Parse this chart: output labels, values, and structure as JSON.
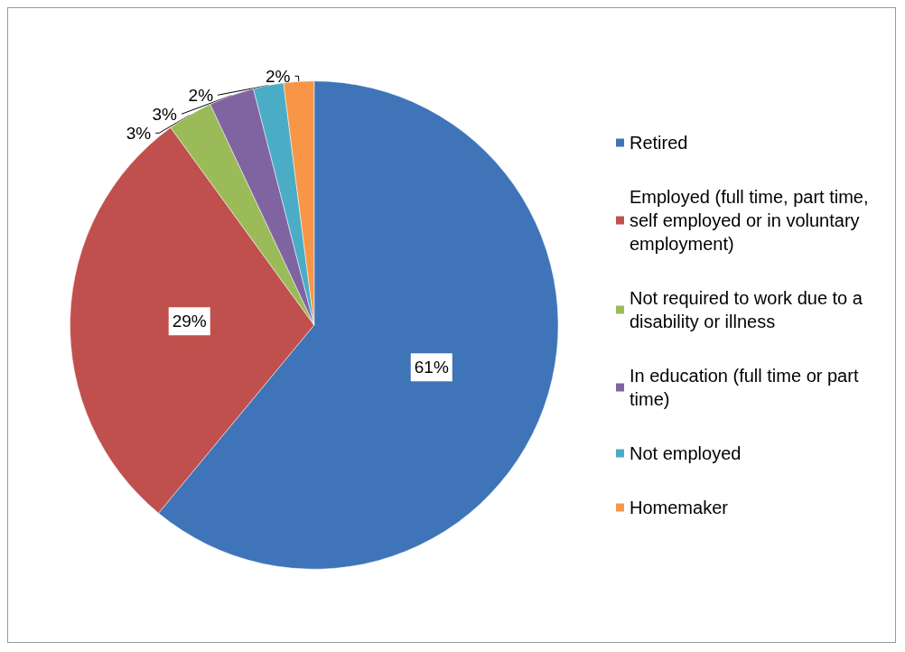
{
  "chart_data": {
    "type": "pie",
    "categories": [
      "Retired",
      "Employed (full time, part time, self employed or in voluntary employment)",
      "Not required to work due to a disability or illness",
      "In education (full time or part time)",
      "Not employed",
      "Homemaker"
    ],
    "values": [
      61,
      29,
      3,
      3,
      2,
      2
    ],
    "colors": [
      "#3f74b8",
      "#c0504d",
      "#9bbb59",
      "#8064a2",
      "#4bacc6",
      "#f79646"
    ],
    "value_labels": [
      "61%",
      "29%",
      "3%",
      "3%",
      "2%",
      "2%"
    ],
    "legend": "right"
  }
}
